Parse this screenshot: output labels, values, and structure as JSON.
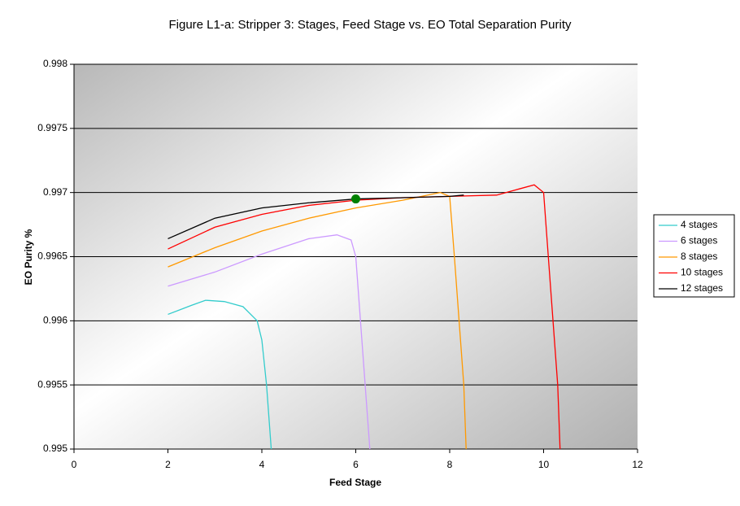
{
  "chart_data": {
    "type": "line",
    "title": "Figure L1-a: Stripper 3:  Stages, Feed Stage vs. EO Total Separation Purity",
    "x_label": "Feed Stage",
    "y_label": "EO Purity %",
    "xlim": [
      0,
      12
    ],
    "xticks": [
      0,
      2,
      4,
      6,
      8,
      10,
      12
    ],
    "ylim": [
      0.995,
      0.998
    ],
    "yticks": [
      0.995,
      0.9955,
      0.996,
      0.9965,
      0.997,
      0.9975,
      0.998
    ],
    "grid": true,
    "legend": "right",
    "series": [
      {
        "name": "4 stages",
        "color": "#33cccc",
        "x": [
          2,
          2.5,
          2.8,
          3.2,
          3.6,
          3.9,
          4.0,
          4.1,
          4.2
        ],
        "values": [
          0.99605,
          0.99612,
          0.99616,
          0.99615,
          0.99611,
          0.996,
          0.99585,
          0.9955,
          0.995
        ]
      },
      {
        "name": "6 stages",
        "color": "#cc99ff",
        "x": [
          2,
          3,
          4,
          5,
          5.6,
          5.9,
          6.0,
          6.1,
          6.2,
          6.3
        ],
        "values": [
          0.99627,
          0.99638,
          0.99652,
          0.99664,
          0.99667,
          0.99663,
          0.9965,
          0.996,
          0.9955,
          0.995
        ]
      },
      {
        "name": "8 stages",
        "color": "#ff9900",
        "x": [
          2,
          3,
          4,
          5,
          6,
          7,
          7.8,
          8.0,
          8.1,
          8.2,
          8.3,
          8.35
        ],
        "values": [
          0.99642,
          0.99657,
          0.9967,
          0.9968,
          0.99688,
          0.99694,
          0.997,
          0.99697,
          0.9965,
          0.996,
          0.9955,
          0.995
        ]
      },
      {
        "name": "10 stages",
        "color": "#ff0000",
        "x": [
          2,
          3,
          4,
          5,
          6,
          7,
          8,
          9,
          9.5,
          9.8,
          10.0,
          10.1,
          10.2,
          10.3,
          10.35
        ],
        "values": [
          0.99656,
          0.99673,
          0.99683,
          0.9969,
          0.99694,
          0.99696,
          0.99697,
          0.99698,
          0.99703,
          0.99706,
          0.997,
          0.9965,
          0.996,
          0.9955,
          0.995
        ]
      },
      {
        "name": "12 stages",
        "color": "#000000",
        "x": [
          2,
          3,
          4,
          5,
          6,
          7,
          8,
          8.3
        ],
        "values": [
          0.99664,
          0.9968,
          0.99688,
          0.99692,
          0.99695,
          0.99696,
          0.99697,
          0.99698
        ]
      }
    ],
    "marker": {
      "x": 6,
      "y": 0.99695,
      "color": "#008000"
    }
  }
}
